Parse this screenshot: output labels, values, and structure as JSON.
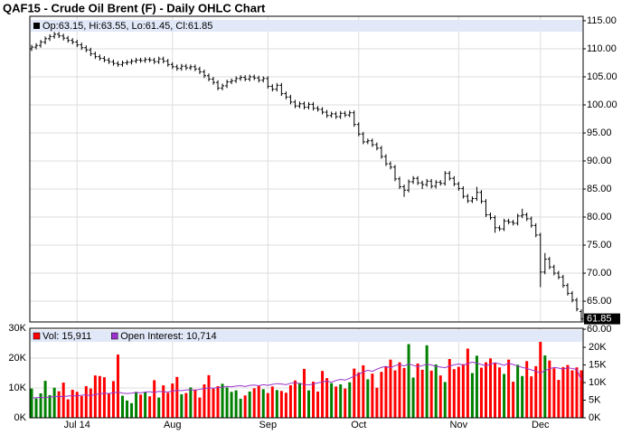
{
  "chart_data": [
    {
      "type": "ohlc",
      "title": "QAF15 - Crude Oil Brent (F) - Daily OHLC Chart",
      "legend_text": "Op:63.15, Hi:63.55, Lo:61.45, Cl:61.85",
      "color": "#000000",
      "legend_band_color": "#e1e8f8",
      "open": [
        110.0,
        110.3,
        110.6,
        111.2,
        111.8,
        112.2,
        112.6,
        112.3,
        111.9,
        111.5,
        111.2,
        110.7,
        110.2,
        109.8,
        109.1,
        108.6,
        108.3,
        108.0,
        107.7,
        107.4,
        107.2,
        107.5,
        107.6,
        107.8,
        108.0,
        107.9,
        108.1,
        108.0,
        107.7,
        108.2,
        107.8,
        107.2,
        106.8,
        106.5,
        106.9,
        106.6,
        106.8,
        106.4,
        105.9,
        105.2,
        104.6,
        104.0,
        103.0,
        103.4,
        104.1,
        104.3,
        104.7,
        104.9,
        104.6,
        105.0,
        104.8,
        104.4,
        104.7,
        103.3,
        102.8,
        103.5,
        102.0,
        101.4,
        100.5,
        99.8,
        100.2,
        99.6,
        100.1,
        99.4,
        99.2,
        98.7,
        98.1,
        98.4,
        97.9,
        98.5,
        98.2,
        98.6,
        96.5,
        94.8,
        93.4,
        93.6,
        92.9,
        92.3,
        90.8,
        89.5,
        88.9,
        86.8,
        85.4,
        84.8,
        86.3,
        86.9,
        86.1,
        85.8,
        86.4,
        85.5,
        86.2,
        86.0,
        87.8,
        86.9,
        85.9,
        85.1,
        83.7,
        82.9,
        83.3,
        84.4,
        82.8,
        80.4,
        79.9,
        78.1,
        77.9,
        79.3,
        79.1,
        78.9,
        80.2,
        80.4,
        79.7,
        78.5,
        76.8,
        70.2,
        72.5,
        71.1,
        70.0,
        69.3,
        67.8,
        66.4,
        65.2,
        63.15
      ],
      "high": [
        110.7,
        111.0,
        111.6,
        112.2,
        112.6,
        113.0,
        113.0,
        112.7,
        112.3,
        111.9,
        111.6,
        111.1,
        110.6,
        110.2,
        109.5,
        109.0,
        108.7,
        108.4,
        108.1,
        107.8,
        107.9,
        108.0,
        108.2,
        108.4,
        108.4,
        108.5,
        108.5,
        108.4,
        108.6,
        108.6,
        108.2,
        107.6,
        107.2,
        107.3,
        107.3,
        107.2,
        107.2,
        106.8,
        106.3,
        105.6,
        105.0,
        104.4,
        103.8,
        104.5,
        104.7,
        105.1,
        105.3,
        105.3,
        105.4,
        105.4,
        105.2,
        105.1,
        105.1,
        103.7,
        103.9,
        103.9,
        102.4,
        101.8,
        100.9,
        100.6,
        100.6,
        100.5,
        100.5,
        99.8,
        99.6,
        99.1,
        98.8,
        98.8,
        98.9,
        98.9,
        99.0,
        99.0,
        96.9,
        95.2,
        94.0,
        94.0,
        93.3,
        92.7,
        91.2,
        89.9,
        89.3,
        87.2,
        85.8,
        86.7,
        87.3,
        87.3,
        86.5,
        86.8,
        86.8,
        86.6,
        86.6,
        88.2,
        88.2,
        87.3,
        86.3,
        85.5,
        84.1,
        83.7,
        85.4,
        84.8,
        83.2,
        80.8,
        80.3,
        78.5,
        79.7,
        79.7,
        79.5,
        80.6,
        81.5,
        80.8,
        80.1,
        78.9,
        77.2,
        73.6,
        72.9,
        71.5,
        70.4,
        69.7,
        68.2,
        66.8,
        65.6,
        63.55
      ],
      "low": [
        109.6,
        109.9,
        110.2,
        110.8,
        111.4,
        111.8,
        111.9,
        111.5,
        111.1,
        110.8,
        110.3,
        109.8,
        109.4,
        108.7,
        108.2,
        107.9,
        107.6,
        107.3,
        107.0,
        106.8,
        106.8,
        107.1,
        107.2,
        107.4,
        107.5,
        107.5,
        107.6,
        107.3,
        107.3,
        107.4,
        106.8,
        106.4,
        106.1,
        106.1,
        106.2,
        106.2,
        106.0,
        105.5,
        104.8,
        104.2,
        103.6,
        102.6,
        102.6,
        103.0,
        103.7,
        103.9,
        104.3,
        104.2,
        104.2,
        104.4,
        104.0,
        104.0,
        102.9,
        102.4,
        102.4,
        101.6,
        101.0,
        100.1,
        99.4,
        99.4,
        99.2,
        99.2,
        99.0,
        98.8,
        98.3,
        97.7,
        97.7,
        97.5,
        97.5,
        97.8,
        97.8,
        96.1,
        94.4,
        93.0,
        93.0,
        92.5,
        91.9,
        90.4,
        89.1,
        88.5,
        86.4,
        85.0,
        83.6,
        84.4,
        85.9,
        85.7,
        85.0,
        85.4,
        85.1,
        85.1,
        85.6,
        85.6,
        86.5,
        85.5,
        84.7,
        83.3,
        82.5,
        82.5,
        82.9,
        82.4,
        80.0,
        79.5,
        77.2,
        77.5,
        77.5,
        78.7,
        78.5,
        78.5,
        79.8,
        79.3,
        78.1,
        76.4,
        67.5,
        69.8,
        70.7,
        69.6,
        68.9,
        67.4,
        66.0,
        64.8,
        63.2,
        61.45
      ],
      "close": [
        110.3,
        110.6,
        111.2,
        111.8,
        112.2,
        112.6,
        112.3,
        111.9,
        111.5,
        111.2,
        110.7,
        110.2,
        109.8,
        109.1,
        108.6,
        108.3,
        108.0,
        107.7,
        107.4,
        107.2,
        107.5,
        107.6,
        107.8,
        108.0,
        107.9,
        108.1,
        108.0,
        107.7,
        108.2,
        107.8,
        107.2,
        106.8,
        106.5,
        106.9,
        106.6,
        106.8,
        106.4,
        105.9,
        105.2,
        104.6,
        104.0,
        103.0,
        103.4,
        104.1,
        104.3,
        104.7,
        104.9,
        104.6,
        105.0,
        104.8,
        104.4,
        104.7,
        103.3,
        102.8,
        103.5,
        102.0,
        101.4,
        100.5,
        99.8,
        100.2,
        99.6,
        100.1,
        99.4,
        99.2,
        98.7,
        98.1,
        98.4,
        97.9,
        98.5,
        98.2,
        98.6,
        96.5,
        94.8,
        93.4,
        93.6,
        92.9,
        92.3,
        90.8,
        89.5,
        88.9,
        86.8,
        85.4,
        84.8,
        86.3,
        86.9,
        86.1,
        85.8,
        86.4,
        85.5,
        86.2,
        86.0,
        87.8,
        86.9,
        85.9,
        85.1,
        83.7,
        82.9,
        83.3,
        84.4,
        82.8,
        80.4,
        79.9,
        78.1,
        77.9,
        79.3,
        79.1,
        78.9,
        80.2,
        80.4,
        79.7,
        78.5,
        76.8,
        70.2,
        72.5,
        71.1,
        70.0,
        69.3,
        67.8,
        66.4,
        65.2,
        63.6,
        61.85
      ],
      "ylim": [
        61.3,
        115.8
      ],
      "yticks": [
        {
          "value": 60,
          "label": "60.00"
        },
        {
          "value": 65,
          "label": "65.00"
        },
        {
          "value": 70,
          "label": "70.00"
        },
        {
          "value": 75,
          "label": "75.00"
        },
        {
          "value": 80,
          "label": "80.00"
        },
        {
          "value": 85,
          "label": "85.00"
        },
        {
          "value": 90,
          "label": "90.00"
        },
        {
          "value": 95,
          "label": "95.00"
        },
        {
          "value": 100,
          "label": "100.00"
        },
        {
          "value": 105,
          "label": "105.00"
        },
        {
          "value": 110,
          "label": "110.00"
        },
        {
          "value": 115,
          "label": "115.00"
        }
      ],
      "grid": true
    },
    {
      "type": "bar",
      "categories": [
        null,
        null,
        null,
        null,
        null,
        null,
        null,
        null,
        null,
        null,
        "Jul 14",
        null,
        null,
        null,
        null,
        null,
        null,
        null,
        null,
        null,
        null,
        null,
        null,
        null,
        null,
        null,
        null,
        null,
        null,
        null,
        null,
        "Aug",
        null,
        null,
        null,
        null,
        null,
        null,
        null,
        null,
        null,
        null,
        null,
        null,
        null,
        null,
        null,
        null,
        null,
        null,
        null,
        null,
        "Sep",
        null,
        null,
        null,
        null,
        null,
        null,
        null,
        null,
        null,
        null,
        null,
        null,
        null,
        null,
        null,
        null,
        null,
        null,
        null,
        "Oct",
        null,
        null,
        null,
        null,
        null,
        null,
        null,
        null,
        null,
        null,
        null,
        null,
        null,
        null,
        null,
        null,
        null,
        null,
        null,
        null,
        null,
        "Nov",
        null,
        null,
        null,
        null,
        null,
        null,
        null,
        null,
        null,
        null,
        null,
        null,
        null,
        null,
        null,
        null,
        null,
        "Dec",
        null,
        null,
        null,
        null,
        null,
        null,
        null,
        null,
        null
      ],
      "series": [
        {
          "name": "Vol: 15,911",
          "color": "#ff0000",
          "up_color": "#008000",
          "values": [
            9800,
            6500,
            8200,
            12400,
            7600,
            10100,
            8900,
            11800,
            6200,
            9400,
            8700,
            7300,
            10600,
            9800,
            14200,
            14000,
            13600,
            8100,
            12300,
            21200,
            7400,
            5800,
            4900,
            8700,
            7800,
            8600,
            7200,
            12600,
            6800,
            10900,
            8400,
            11500,
            13700,
            7900,
            8300,
            10200,
            9500,
            6800,
            11200,
            14300,
            9800,
            10600,
            11400,
            10200,
            8700,
            9200,
            6400,
            7500,
            8800,
            9900,
            10700,
            9600,
            8300,
            10500,
            9300,
            9000,
            8400,
            10900,
            12500,
            11700,
            16400,
            9200,
            12100,
            8800,
            15700,
            13300,
            11600,
            10500,
            11200,
            9800,
            11900,
            16500,
            15200,
            17600,
            12900,
            14800,
            10100,
            15400,
            17200,
            19500,
            15900,
            18600,
            16700,
            24700,
            13500,
            18200,
            16100,
            24300,
            15800,
            17900,
            14200,
            12000,
            19700,
            16300,
            17100,
            18000,
            23200,
            15000,
            20800,
            16800,
            18600,
            19900,
            18400,
            16900,
            14700,
            19500,
            12100,
            17800,
            14000,
            19000,
            13900,
            17300,
            25600,
            20900,
            19200,
            16600,
            12700,
            17000,
            17700,
            15900,
            16900,
            15911
          ]
        },
        {
          "name": "Open Interest: 10,714",
          "type": "line",
          "axis": "y2",
          "color": "#9933cc",
          "values": [
            5600,
            5700,
            5800,
            5700,
            5900,
            6000,
            6100,
            6000,
            6200,
            6300,
            6200,
            6400,
            6500,
            6300,
            6600,
            6800,
            7000,
            6900,
            7100,
            7300,
            7000,
            6900,
            7000,
            7200,
            7100,
            7300,
            7400,
            7200,
            7500,
            7400,
            7300,
            7600,
            7800,
            7700,
            7900,
            8000,
            7800,
            8100,
            8300,
            8500,
            8400,
            8600,
            8700,
            8900,
            8800,
            9000,
            9100,
            8900,
            9200,
            9300,
            9100,
            9400,
            9200,
            9500,
            9700,
            9600,
            9400,
            9800,
            10000,
            9700,
            9500,
            9300,
            9600,
            9900,
            10200,
            10400,
            10100,
            10600,
            10900,
            10700,
            11200,
            11800,
            12400,
            13000,
            13500,
            13200,
            13800,
            14300,
            14600,
            14200,
            14800,
            15100,
            14700,
            15300,
            14900,
            14500,
            14800,
            15200,
            15000,
            14600,
            14400,
            14200,
            14700,
            15000,
            15300,
            14900,
            15400,
            15800,
            15500,
            15100,
            14800,
            15200,
            15600,
            15300,
            14900,
            15500,
            15100,
            14700,
            14300,
            14000,
            13600,
            13200,
            12700,
            13400,
            13900,
            14300,
            14100,
            13800,
            14200,
            14000,
            13700,
            10714
          ]
        }
      ],
      "ylim": [
        0,
        30000
      ],
      "yticks": [
        {
          "value": 0,
          "label": "0K"
        },
        {
          "value": 10000,
          "label": "10K"
        },
        {
          "value": 20000,
          "label": "20K"
        },
        {
          "value": 30000,
          "label": "30K"
        }
      ],
      "y2lim": [
        0,
        25400
      ],
      "y2ticks": [
        {
          "value": 0,
          "label": "0K"
        },
        {
          "value": 5000,
          "label": "5K"
        },
        {
          "value": 10000,
          "label": "10K"
        },
        {
          "value": 15000,
          "label": "15K"
        },
        {
          "value": 20000,
          "label": "20K"
        }
      ],
      "grid": true
    }
  ]
}
